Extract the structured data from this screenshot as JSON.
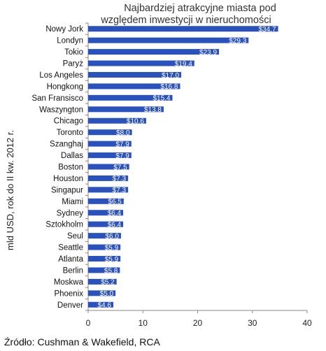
{
  "chart_data": {
    "type": "bar",
    "orientation": "horizontal",
    "title": "Najbardziej atrakcyjne miasta pod względem inwestycji w nieruchomości",
    "title_lines": [
      "Najbardziej atrakcyjne miasta pod",
      "względem inwestycji w nieruchomości"
    ],
    "ylabel": "mld USD, rok do II kw. 2012 r.",
    "xlabel": "",
    "xlim": [
      0,
      40
    ],
    "xticks": [
      0,
      10,
      20,
      30,
      40
    ],
    "grid": false,
    "bar_color": "#2a52be",
    "categories": [
      "Nowy Jork",
      "Londyn",
      "Tokio",
      "Paryż",
      "Los Angeles",
      "Hongkong",
      "San Fransisco",
      "Waszyngton",
      "Chicago",
      "Toronto",
      "Szanghaj",
      "Dallas",
      "Boston",
      "Houston",
      "Singapur",
      "Miami",
      "Sydney",
      "Sztokholm",
      "Seul",
      "Seattle",
      "Atlanta",
      "Berlin",
      "Moskwa",
      "Phoenix",
      "Denver"
    ],
    "values": [
      34.7,
      29.3,
      23.9,
      19.4,
      17.0,
      16.8,
      15.4,
      13.8,
      10.6,
      8.0,
      7.9,
      7.9,
      7.5,
      7.3,
      7.3,
      6.5,
      6.4,
      6.4,
      6.0,
      5.9,
      5.9,
      5.8,
      5.2,
      5.0,
      4.6
    ],
    "data_labels": [
      "$34.7",
      "$29.3",
      "$23.9",
      "$19.4",
      "$17.0",
      "$16.8",
      "$15.4",
      "$13.8",
      "$10.6",
      "$8.0",
      "$7.9",
      "$7.9",
      "$7.5",
      "$7.3",
      "$7.3",
      "$6.5",
      "$6.4",
      "$6.4",
      "$6.0",
      "$5.9",
      "$5.9",
      "$5.8",
      "$5.2",
      "$5.0",
      "$4.6"
    ]
  },
  "source": "Źródło: Cushman & Wakefield, RCA"
}
